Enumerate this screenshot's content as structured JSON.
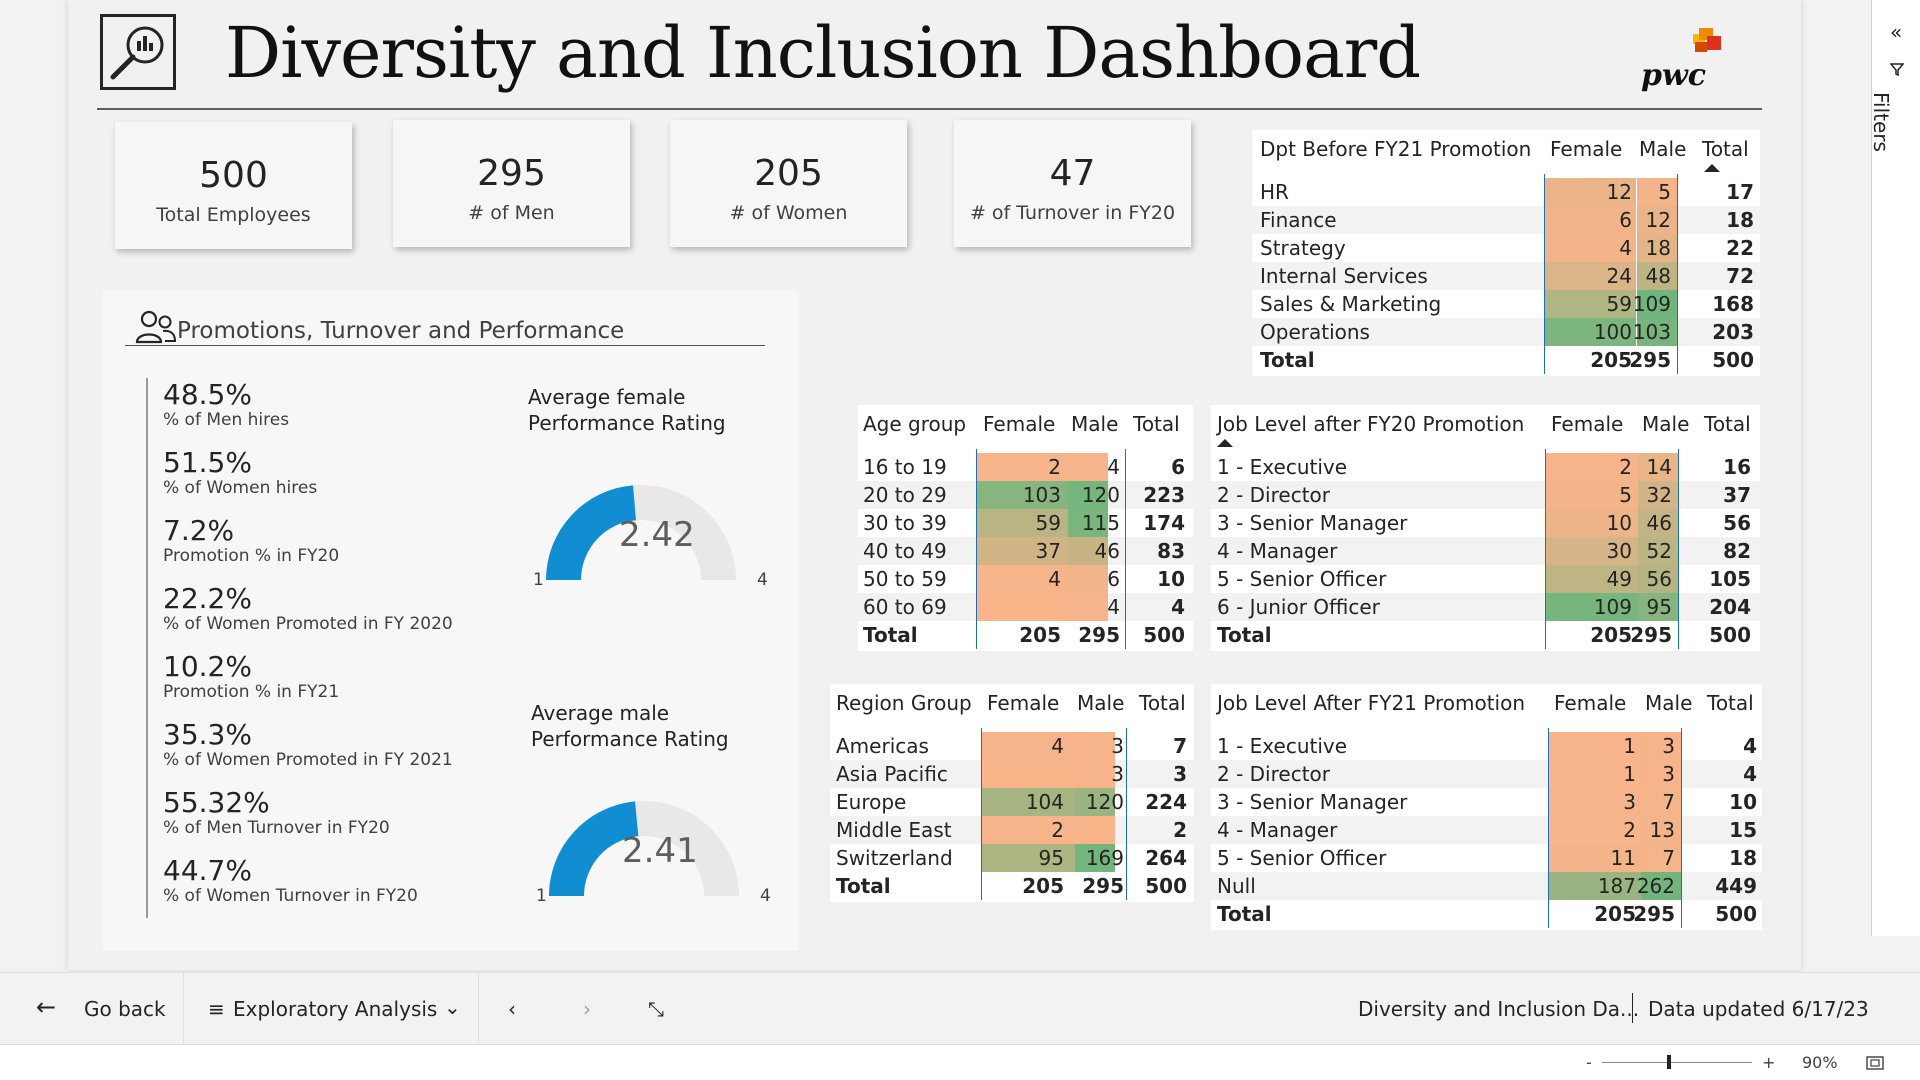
{
  "title": "Diversity and Inclusion Dashboard",
  "brand_logo_text": "pwc",
  "kpis": [
    {
      "value": "500",
      "label": "Total Employees"
    },
    {
      "value": "295",
      "label": "# of Men"
    },
    {
      "value": "205",
      "label": "# of Women"
    },
    {
      "value": "47",
      "label": "# of Turnover in FY20"
    }
  ],
  "promotions_panel": {
    "title": "Promotions, Turnover and Performance",
    "stats": [
      {
        "value": "48.5%",
        "label": "% of Men hires"
      },
      {
        "value": "51.5%",
        "label": "% of Women hires"
      },
      {
        "value": "7.2%",
        "label": "Promotion % in FY20"
      },
      {
        "value": "22.2%",
        "label": "% of Women Promoted in FY 2020"
      },
      {
        "value": "10.2%",
        "label": "Promotion % in FY21"
      },
      {
        "value": "35.3%",
        "label": "% of Women Promoted in FY 2021"
      },
      {
        "value": "55.32%",
        "label": "% of Men Turnover in FY20"
      },
      {
        "value": "44.7%",
        "label": "% of Women Turnover in FY20"
      }
    ],
    "gauges": [
      {
        "title_line1": "Average female",
        "title_line2": "Performance Rating",
        "value": "2.42",
        "numeric": 2.42,
        "min": "1",
        "max": "4"
      },
      {
        "title_line1": "Average male",
        "title_line2": "Performance Rating",
        "value": "2.41",
        "numeric": 2.41,
        "min": "1",
        "max": "4"
      }
    ]
  },
  "tables": {
    "dept": {
      "headers": [
        "Dpt Before FY21 Promotion",
        "Female",
        "Male",
        "Total"
      ],
      "rows": [
        [
          "HR",
          "12",
          "5",
          "17"
        ],
        [
          "Finance",
          "6",
          "12",
          "18"
        ],
        [
          "Strategy",
          "4",
          "18",
          "22"
        ],
        [
          "Internal Services",
          "24",
          "48",
          "72"
        ],
        [
          "Sales & Marketing",
          "59",
          "109",
          "168"
        ],
        [
          "Operations",
          "100",
          "103",
          "203"
        ]
      ],
      "total": [
        "Total",
        "205",
        "295",
        "500"
      ]
    },
    "age": {
      "headers": [
        "Age group",
        "Female",
        "Male",
        "Total"
      ],
      "rows": [
        [
          "16 to 19",
          "2",
          "4",
          "6"
        ],
        [
          "20 to 29",
          "103",
          "120",
          "223"
        ],
        [
          "30 to 39",
          "59",
          "115",
          "174"
        ],
        [
          "40 to 49",
          "37",
          "46",
          "83"
        ],
        [
          "50 to 59",
          "4",
          "6",
          "10"
        ],
        [
          "60 to 69",
          "",
          "4",
          "4"
        ]
      ],
      "total": [
        "Total",
        "205",
        "295",
        "500"
      ]
    },
    "job20": {
      "headers": [
        "Job Level after FY20 Promotion",
        "Female",
        "Male",
        "Total"
      ],
      "rows": [
        [
          "1 - Executive",
          "2",
          "14",
          "16"
        ],
        [
          "2 - Director",
          "5",
          "32",
          "37"
        ],
        [
          "3 - Senior Manager",
          "10",
          "46",
          "56"
        ],
        [
          "4 - Manager",
          "30",
          "52",
          "82"
        ],
        [
          "5 - Senior Officer",
          "49",
          "56",
          "105"
        ],
        [
          "6 - Junior Officer",
          "109",
          "95",
          "204"
        ]
      ],
      "total": [
        "Total",
        "205",
        "295",
        "500"
      ]
    },
    "region": {
      "headers": [
        "Region Group",
        "Female",
        "Male",
        "Total"
      ],
      "rows": [
        [
          "Americas",
          "4",
          "3",
          "7"
        ],
        [
          "Asia Pacific",
          "",
          "3",
          "3"
        ],
        [
          "Europe",
          "104",
          "120",
          "224"
        ],
        [
          "Middle East",
          "2",
          "",
          "2"
        ],
        [
          "Switzerland",
          "95",
          "169",
          "264"
        ]
      ],
      "total": [
        "Total",
        "205",
        "295",
        "500"
      ]
    },
    "job21": {
      "headers": [
        "Job Level After FY21 Promotion",
        "Female",
        "Male",
        "Total"
      ],
      "rows": [
        [
          "1 - Executive",
          "1",
          "3",
          "4"
        ],
        [
          "2 - Director",
          "1",
          "3",
          "4"
        ],
        [
          "3 - Senior Manager",
          "3",
          "7",
          "10"
        ],
        [
          "4 - Manager",
          "2",
          "13",
          "15"
        ],
        [
          "5 - Senior Officer",
          "11",
          "7",
          "18"
        ],
        [
          "Null",
          "187",
          "262",
          "449"
        ]
      ],
      "total": [
        "Total",
        "205",
        "295",
        "500"
      ]
    }
  },
  "colors": {
    "accent_blue": "#118dd2",
    "heat_low": "#f9b48a",
    "heat_high": "#6fb57d",
    "separator": "#1f6db5"
  },
  "filters_label": "Filters",
  "footer": {
    "go_back": "Go back",
    "page_name": "Exploratory Analysis",
    "report_name": "Diversity and Inclusion Da...",
    "data_updated": "Data updated 6/17/23"
  },
  "statusbar": {
    "zoom": "90%",
    "minus": "-",
    "plus": "+"
  }
}
